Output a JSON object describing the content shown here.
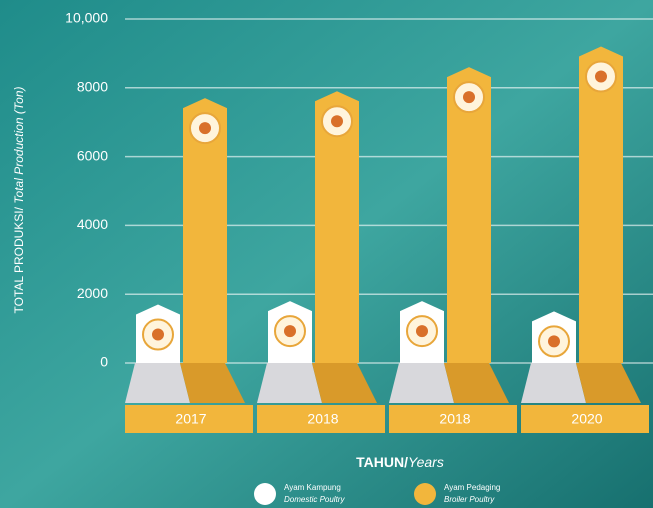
{
  "chart_data": {
    "type": "bar",
    "y_label": "TOTAL PRODUKSI/",
    "y_label_italic": "Total Production (Ton)",
    "x_label": "TAHUN/",
    "x_label_italic": "Years",
    "categories": [
      "2017",
      "2018",
      "2018",
      "2020"
    ],
    "series": [
      {
        "name": "Ayam Kampung",
        "name_en": "Domestic Poultry",
        "color": "#ffffff",
        "values": [
          1700,
          1800,
          1800,
          1500
        ]
      },
      {
        "name": "Ayam Pedaging",
        "name_en": "Broiler Poultry",
        "color": "#f2b63c",
        "values": [
          7700,
          7900,
          8600,
          9200
        ]
      }
    ],
    "ylim": [
      0,
      10000
    ],
    "yticks": [
      0,
      2000,
      4000,
      6000,
      8000,
      {
        "value": 10000,
        "label": "10,000"
      }
    ],
    "grid": true
  }
}
